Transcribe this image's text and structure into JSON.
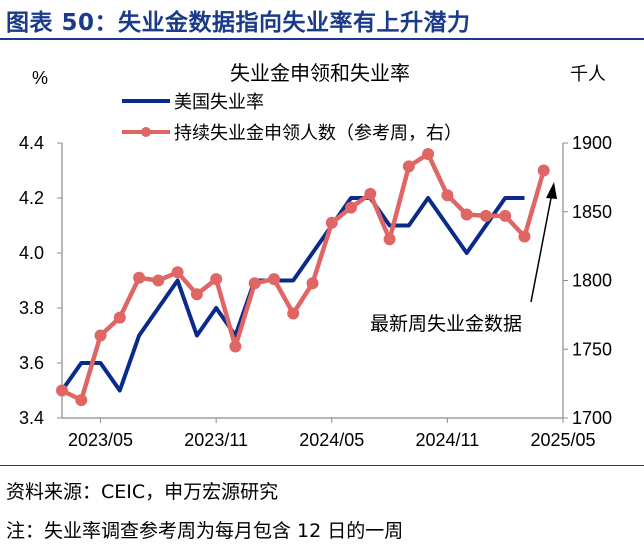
{
  "header": {
    "figure_title": "图表 50：失业金数据指向失业率有上升潜力"
  },
  "footer": {
    "source": "资料来源：CEIC，申万宏源研究",
    "note": "注：失业率调查参考周为每月包含 12 日的一周"
  },
  "chart_data": {
    "type": "line",
    "title": "失业金申领和失业率",
    "x_tick_labels": [
      "2023/05",
      "2023/11",
      "2024/05",
      "2024/11",
      "2025/05"
    ],
    "y_left": {
      "unit_label": "%",
      "range": [
        3.4,
        4.4
      ],
      "ticks": [
        "3.4",
        "3.6",
        "3.8",
        "4.0",
        "4.2",
        "4.4"
      ]
    },
    "y_right": {
      "unit_label": "千人",
      "range": [
        1700,
        1900
      ],
      "ticks": [
        "1700",
        "1750",
        "1800",
        "1850",
        "1900"
      ]
    },
    "series": [
      {
        "name": "美国失业率",
        "axis": "left",
        "color": "#0a2a8c",
        "x": [
          "2023-03",
          "2023-04",
          "2023-05",
          "2023-06",
          "2023-07",
          "2023-08",
          "2023-09",
          "2023-10",
          "2023-11",
          "2023-12",
          "2024-01",
          "2024-02",
          "2024-03",
          "2024-04",
          "2024-05",
          "2024-06",
          "2024-07",
          "2024-08",
          "2024-09",
          "2024-10",
          "2024-11",
          "2024-12",
          "2025-01",
          "2025-02",
          "2025-03",
          "2025-04"
        ],
        "values": [
          3.5,
          3.6,
          3.6,
          3.5,
          3.7,
          3.8,
          3.9,
          3.7,
          3.8,
          3.7,
          3.9,
          3.9,
          3.9,
          4.0,
          4.1,
          4.2,
          4.2,
          4.1,
          4.1,
          4.2,
          4.1,
          4.0,
          4.1,
          4.2,
          4.2,
          null
        ]
      },
      {
        "name": "持续失业金申领人数（参考周，右）",
        "axis": "right",
        "color": "#e06666",
        "x": [
          "2023-03",
          "2023-04",
          "2023-05",
          "2023-06",
          "2023-07",
          "2023-08",
          "2023-09",
          "2023-10",
          "2023-11",
          "2023-12",
          "2024-01",
          "2024-02",
          "2024-03",
          "2024-04",
          "2024-05",
          "2024-06",
          "2024-07",
          "2024-08",
          "2024-09",
          "2024-10",
          "2024-11",
          "2024-12",
          "2025-01",
          "2025-02",
          "2025-03",
          "2025-04",
          "2025-05"
        ],
        "values": [
          1720,
          1713,
          1760,
          1773,
          1802,
          1800,
          1806,
          1790,
          1801,
          1752,
          1798,
          1801,
          1776,
          1798,
          1842,
          1853,
          1863,
          1830,
          1883,
          1892,
          1862,
          1848,
          1847,
          1847,
          1832,
          1880,
          null
        ]
      }
    ],
    "annotation": {
      "text": "最新周失业金数据"
    },
    "grid": false,
    "legend_position": "top-left"
  }
}
